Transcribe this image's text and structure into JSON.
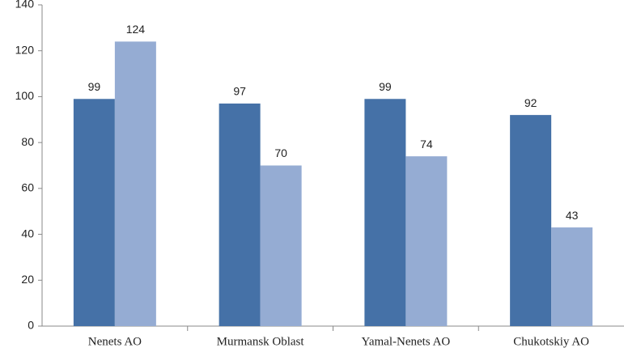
{
  "chart_data": {
    "type": "bar",
    "categories": [
      "Nenets AO",
      "Murmansk Oblast",
      "Yamal-Nenets AO",
      "Chukotskiy AO"
    ],
    "series": [
      {
        "color": "#4571a7",
        "values": [
          99,
          97,
          99,
          92
        ]
      },
      {
        "color": "#95acd3",
        "values": [
          124,
          70,
          74,
          43
        ]
      }
    ],
    "ylim": [
      0,
      140
    ],
    "yticks": [
      0,
      20,
      40,
      60,
      80,
      100,
      120,
      140
    ],
    "grid": false
  }
}
